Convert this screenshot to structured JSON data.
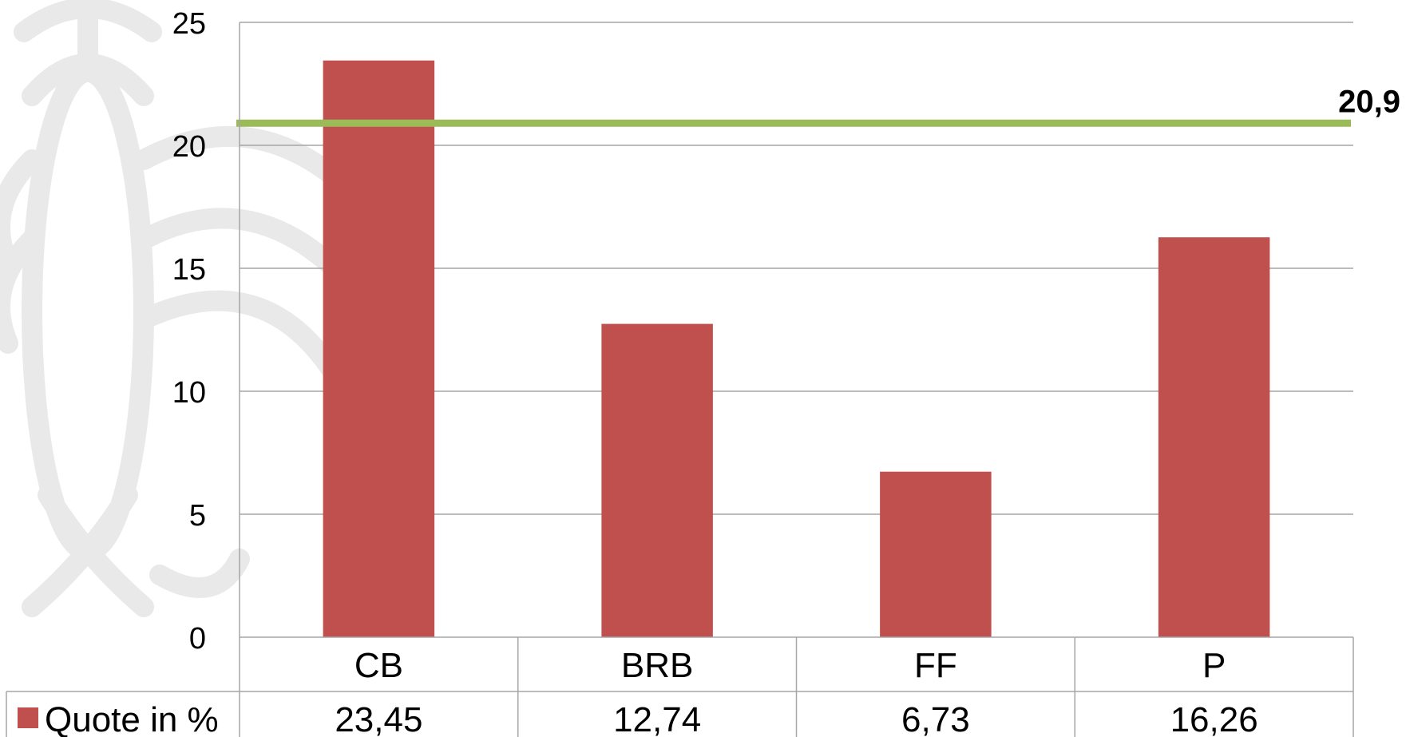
{
  "chart_data": {
    "type": "bar",
    "categories": [
      "CB",
      "BRB",
      "FF",
      "P"
    ],
    "series": [
      {
        "name": "Quote in %",
        "values": [
          23.45,
          12.74,
          6.73,
          16.26
        ],
        "color": "#c0504d"
      }
    ],
    "table_values": [
      "23,45",
      "12,74",
      "6,73",
      "16,26"
    ],
    "yticks": [
      "0",
      "5",
      "10",
      "15",
      "20",
      "25"
    ],
    "ylim": [
      0,
      25
    ],
    "grid": true,
    "reference_line": {
      "value": 20.9,
      "label": "20,9",
      "color": "#9bbb59"
    },
    "legend_placement": "data-table-left"
  }
}
